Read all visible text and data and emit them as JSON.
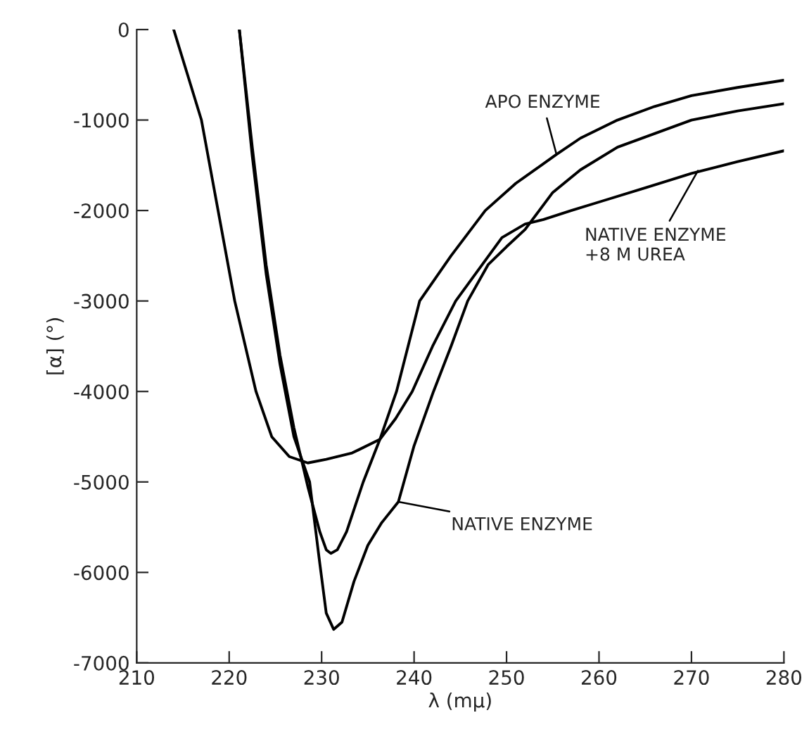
{
  "chart_data": {
    "type": "line",
    "xlabel": "λ (mμ)",
    "ylabel": "[α] (°)",
    "xlim": [
      210,
      280
    ],
    "xticks": [
      210,
      220,
      230,
      240,
      250,
      260,
      270,
      280
    ],
    "ylim": [
      -7000,
      0
    ],
    "yticks": [
      0,
      -1000,
      -2000,
      -3000,
      -4000,
      -5000,
      -6000,
      -7000
    ],
    "grid": false,
    "marker": "none",
    "line_style": "solid",
    "series": [
      {
        "color": "#000000",
        "x": [
          221.1,
          222.5,
          224,
          225.5,
          227,
          228.5,
          229.8,
          230.5,
          231.0,
          231.7,
          232.7,
          234.5,
          236.3,
          238.1,
          240.6,
          244,
          247.7,
          251,
          255.4,
          258,
          262,
          266,
          270,
          275,
          280
        ],
        "values": [
          0,
          -1300,
          -2600,
          -3600,
          -4400,
          -5050,
          -5550,
          -5750,
          -5790,
          -5750,
          -5550,
          -5000,
          -4530,
          -4000,
          -3000,
          -2500,
          -2000,
          -1700,
          -1380,
          -1200,
          -1000,
          -850,
          -730,
          -640,
          -560
        ]
      },
      {
        "color": "#000000",
        "x": [
          221.1,
          222.5,
          224,
          225.5,
          227,
          228.7,
          229.8,
          230.5,
          231.3,
          232.2,
          233.5,
          235,
          236.5,
          238.3,
          240,
          242.1,
          244,
          245.8,
          248,
          250,
          252,
          255,
          258,
          262,
          266,
          270,
          275,
          280
        ],
        "values": [
          0,
          -1400,
          -2700,
          -3700,
          -4500,
          -5000,
          -5900,
          -6450,
          -6630,
          -6550,
          -6100,
          -5700,
          -5450,
          -5220,
          -4600,
          -4000,
          -3500,
          -3000,
          -2600,
          -2400,
          -2210,
          -1800,
          -1550,
          -1300,
          -1150,
          -1000,
          -900,
          -820
        ]
      },
      {
        "color": "#000000",
        "x": [
          214.0,
          215.5,
          217.0,
          218.8,
          220.6,
          222.9,
          224.6,
          226.5,
          228.5,
          230.5,
          233.3,
          236.3,
          238,
          239.8,
          242,
          244.5,
          247,
          249.5,
          252,
          254,
          257,
          260.2,
          265,
          270,
          275,
          280
        ],
        "values": [
          0,
          -500,
          -1000,
          -2000,
          -3000,
          -4000,
          -4500,
          -4720,
          -4790,
          -4750,
          -4680,
          -4530,
          -4300,
          -4000,
          -3500,
          -3000,
          -2650,
          -2300,
          -2150,
          -2100,
          -2000,
          -1900,
          -1750,
          -1590,
          -1460,
          -1340
        ]
      }
    ],
    "annotations": [
      {
        "text": "APO ENZYME",
        "x": 255.4,
        "y": -1380
      },
      {
        "text": "NATIVE ENZYME",
        "x": 238.3,
        "y": -5220
      },
      {
        "text": "NATIVE ENZYME\n+8 M UREA",
        "x": 270.7,
        "y": -1560
      }
    ]
  }
}
